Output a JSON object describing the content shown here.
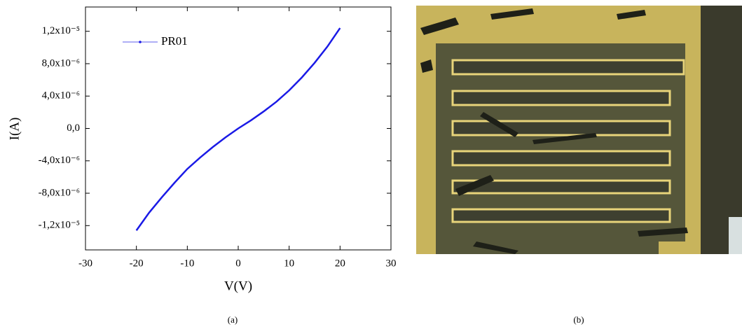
{
  "chart_data": {
    "type": "line",
    "xlabel": "V(V)",
    "ylabel": "I(A)",
    "x": [
      -20,
      -17.5,
      -15,
      -12.5,
      -10,
      -7.5,
      -5,
      -2.5,
      0,
      2.5,
      5,
      7.5,
      10,
      12.5,
      15,
      17.5,
      20
    ],
    "series": [
      {
        "name": "PR01",
        "color": "#1a1ae6",
        "values": [
          -1.26e-05,
          -1.04e-05,
          -8.5e-06,
          -6.7e-06,
          -5e-06,
          -3.6e-06,
          -2.3e-06,
          -1.1e-06,
          0,
          1e-06,
          2.1e-06,
          3.3e-06,
          4.7e-06,
          6.3e-06,
          8.1e-06,
          1.01e-05,
          1.24e-05
        ]
      }
    ],
    "xlim": [
      -30,
      30
    ],
    "xticks": [
      -30,
      -20,
      -10,
      0,
      10,
      20,
      30
    ],
    "ylim": [
      -1.5e-05,
      1.5e-05
    ],
    "yticks": [
      {
        "value": -1.2e-05,
        "label": "-1,2x10⁻⁵"
      },
      {
        "value": -8e-06,
        "label": "-8,0x10⁻⁶"
      },
      {
        "value": -4e-06,
        "label": "-4,0x10⁻⁶"
      },
      {
        "value": 0,
        "label": "0,0"
      },
      {
        "value": 4e-06,
        "label": "4,0x10⁻⁶"
      },
      {
        "value": 8e-06,
        "label": "8,0x10⁻⁶"
      },
      {
        "value": 1.2e-05,
        "label": "1,2x10⁻⁵"
      }
    ],
    "legend": "upper-left"
  },
  "captions": [
    "(a)",
    "(b)"
  ]
}
